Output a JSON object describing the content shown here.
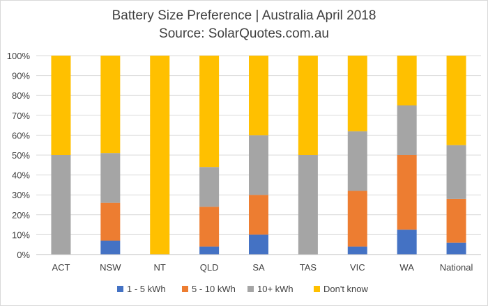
{
  "chart_data": {
    "type": "bar",
    "stacked": true,
    "title": "Battery Size Preference  | Australia April 2018",
    "subtitle": "Source: SolarQuotes.com.au",
    "categories": [
      "ACT",
      "NSW",
      "NT",
      "QLD",
      "SA",
      "TAS",
      "VIC",
      "WA",
      "National"
    ],
    "y_tick_labels": [
      "0%",
      "10%",
      "20%",
      "30%",
      "40%",
      "50%",
      "60%",
      "70%",
      "80%",
      "90%",
      "100%"
    ],
    "ylim": [
      0,
      100
    ],
    "grid": true,
    "legend_position": "bottom",
    "series": [
      {
        "name": "1 - 5 kWh",
        "color": "#4472C4",
        "values": [
          0,
          7,
          0,
          4,
          10,
          0,
          4,
          12.5,
          6
        ]
      },
      {
        "name": "5 - 10 kWh",
        "color": "#ED7D31",
        "values": [
          0,
          19,
          0,
          20,
          20,
          0,
          28,
          37.5,
          22
        ]
      },
      {
        "name": "10+ kWh",
        "color": "#A5A5A5",
        "values": [
          50,
          25,
          0,
          20,
          30,
          50,
          30,
          25,
          27
        ]
      },
      {
        "name": "Don't know",
        "color": "#FFC000",
        "values": [
          50,
          49,
          100,
          56,
          40,
          50,
          38,
          25,
          45
        ]
      }
    ]
  }
}
